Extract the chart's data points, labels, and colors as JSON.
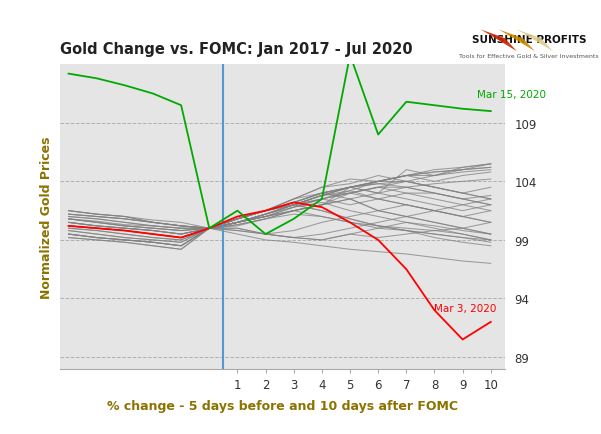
{
  "title": "Gold Change vs. FOMC: Jan 2017 - Jul 2020",
  "xlabel": "% change - 5 days before and 10 days after FOMC",
  "ylabel": "Normalized Gold Prices",
  "x_points": [
    -5,
    -4,
    -3,
    -2,
    -1,
    0,
    1,
    2,
    3,
    4,
    5,
    6,
    7,
    8,
    9,
    10
  ],
  "xlim": [
    -5.3,
    10.5
  ],
  "ylim": [
    88,
    114
  ],
  "yticks": [
    89,
    94,
    99,
    104,
    109
  ],
  "xticks": [
    1,
    2,
    3,
    4,
    5,
    6,
    7,
    8,
    9,
    10
  ],
  "vline_x": 0.5,
  "background_color": "#e5e5e5",
  "title_color": "#222222",
  "axis_label_color": "#8B7300",
  "mar15_color": "#00aa00",
  "mar3_color": "#ff0000",
  "gray_color": "#808080",
  "blue_vline_color": "#5599cc",
  "annotation_mar15": "Mar 15, 2020",
  "annotation_mar3": "Mar 3, 2020",
  "mar15_data": [
    113.2,
    112.8,
    112.2,
    111.5,
    110.5,
    100.0,
    101.5,
    99.5,
    100.8,
    102.5,
    114.8,
    108.0,
    110.8,
    110.5,
    110.2,
    110.0
  ],
  "mar3_data": [
    100.2,
    100.0,
    99.8,
    99.5,
    99.2,
    100.0,
    101.0,
    101.5,
    102.2,
    101.8,
    100.5,
    99.0,
    96.5,
    93.0,
    90.5,
    92.0
  ],
  "gray_lines": [
    [
      101.5,
      101.2,
      101.0,
      100.7,
      100.5,
      100.0,
      100.3,
      100.8,
      101.5,
      102.0,
      103.5,
      103.0,
      105.0,
      104.5,
      105.2,
      105.5
    ],
    [
      100.2,
      100.0,
      99.8,
      99.5,
      99.2,
      100.0,
      100.5,
      101.2,
      101.8,
      102.5,
      103.0,
      103.5,
      104.0,
      104.5,
      105.0,
      105.5
    ],
    [
      99.5,
      99.2,
      99.0,
      98.8,
      98.5,
      100.0,
      100.5,
      101.0,
      101.8,
      102.5,
      103.2,
      104.0,
      104.5,
      104.8,
      105.0,
      105.2
    ],
    [
      100.8,
      100.6,
      100.3,
      100.2,
      100.0,
      100.0,
      100.8,
      101.5,
      102.5,
      103.5,
      104.2,
      104.0,
      104.5,
      104.0,
      104.5,
      104.8
    ],
    [
      101.2,
      101.0,
      100.8,
      100.5,
      100.2,
      100.0,
      100.5,
      101.2,
      102.0,
      102.8,
      103.5,
      104.0,
      104.0,
      103.5,
      103.0,
      103.5
    ],
    [
      100.5,
      100.2,
      100.0,
      99.8,
      99.5,
      100.0,
      100.0,
      99.5,
      99.8,
      100.5,
      101.0,
      101.5,
      102.0,
      101.5,
      101.0,
      101.5
    ],
    [
      99.2,
      99.0,
      98.8,
      98.5,
      98.2,
      100.0,
      100.5,
      101.0,
      101.5,
      102.0,
      102.5,
      103.0,
      103.5,
      103.0,
      102.5,
      102.8
    ],
    [
      100.2,
      100.0,
      99.8,
      99.5,
      99.2,
      100.0,
      100.8,
      101.5,
      102.2,
      103.0,
      103.5,
      103.0,
      102.5,
      102.0,
      101.5,
      102.0
    ],
    [
      101.5,
      101.2,
      101.0,
      100.5,
      100.2,
      100.0,
      100.3,
      100.8,
      101.5,
      102.0,
      103.0,
      103.5,
      103.0,
      102.5,
      102.0,
      101.5
    ],
    [
      100.0,
      99.8,
      99.5,
      99.2,
      99.0,
      100.0,
      100.5,
      101.2,
      102.0,
      102.5,
      102.0,
      102.5,
      103.0,
      103.0,
      102.5,
      102.0
    ],
    [
      99.5,
      99.2,
      99.0,
      98.8,
      98.5,
      100.0,
      100.0,
      99.5,
      99.2,
      99.0,
      99.5,
      99.2,
      99.5,
      99.8,
      100.0,
      100.5
    ],
    [
      100.8,
      100.5,
      100.2,
      100.0,
      99.8,
      100.0,
      100.5,
      101.0,
      101.5,
      101.0,
      100.5,
      100.0,
      99.8,
      99.5,
      99.2,
      99.0
    ],
    [
      101.2,
      101.0,
      100.8,
      100.5,
      100.2,
      100.0,
      100.2,
      100.8,
      101.2,
      101.0,
      100.5,
      100.2,
      100.0,
      99.8,
      99.5,
      99.0
    ],
    [
      99.8,
      99.5,
      99.2,
      99.0,
      98.8,
      100.0,
      100.5,
      101.0,
      101.5,
      102.0,
      102.5,
      101.5,
      101.0,
      100.5,
      100.0,
      99.5
    ],
    [
      100.5,
      100.2,
      100.0,
      99.8,
      99.5,
      100.0,
      100.8,
      101.5,
      102.0,
      102.8,
      103.0,
      102.5,
      102.0,
      101.5,
      101.0,
      100.5
    ],
    [
      101.0,
      100.8,
      100.5,
      100.2,
      100.0,
      100.0,
      100.8,
      101.5,
      102.5,
      103.5,
      103.8,
      104.5,
      104.0,
      103.5,
      103.0,
      102.5
    ],
    [
      100.2,
      100.0,
      99.8,
      99.5,
      99.2,
      100.0,
      100.5,
      101.2,
      102.0,
      102.8,
      103.5,
      104.0,
      104.5,
      104.5,
      104.8,
      105.0
    ],
    [
      99.5,
      99.2,
      99.0,
      98.8,
      98.5,
      100.0,
      100.5,
      101.2,
      102.0,
      102.5,
      103.0,
      103.5,
      103.5,
      103.8,
      104.0,
      104.2
    ],
    [
      100.8,
      100.5,
      100.2,
      100.0,
      99.8,
      100.0,
      100.8,
      101.5,
      102.2,
      103.0,
      103.5,
      103.8,
      103.5,
      103.0,
      102.5,
      102.0
    ],
    [
      101.5,
      101.2,
      101.0,
      100.5,
      100.2,
      100.0,
      100.8,
      101.5,
      102.2,
      103.0,
      103.5,
      103.8,
      104.0,
      103.5,
      103.0,
      102.5
    ],
    [
      100.0,
      99.8,
      99.5,
      99.2,
      99.0,
      100.0,
      100.5,
      101.2,
      102.0,
      102.8,
      103.5,
      104.0,
      104.5,
      104.8,
      105.0,
      105.2
    ],
    [
      99.2,
      99.0,
      98.8,
      98.5,
      98.2,
      100.0,
      99.8,
      99.5,
      99.2,
      99.5,
      100.0,
      100.5,
      101.0,
      101.5,
      102.0,
      102.5
    ],
    [
      100.5,
      100.2,
      100.0,
      99.8,
      99.5,
      100.0,
      100.8,
      101.5,
      102.5,
      103.0,
      102.5,
      101.5,
      101.0,
      100.5,
      100.0,
      99.5
    ],
    [
      101.2,
      101.0,
      100.8,
      100.5,
      100.2,
      100.0,
      100.8,
      101.5,
      102.0,
      102.8,
      103.2,
      102.5,
      102.0,
      101.5,
      101.0,
      100.5
    ],
    [
      99.8,
      99.5,
      99.2,
      99.0,
      98.8,
      100.0,
      100.5,
      101.0,
      101.8,
      102.2,
      101.5,
      101.0,
      100.5,
      100.0,
      99.5,
      99.0
    ],
    [
      100.5,
      100.2,
      100.0,
      99.8,
      99.5,
      100.0,
      100.8,
      101.5,
      102.0,
      101.5,
      100.8,
      100.2,
      99.8,
      99.5,
      99.2,
      98.8
    ],
    [
      101.0,
      100.8,
      100.5,
      100.2,
      100.0,
      100.0,
      99.5,
      99.0,
      98.8,
      98.5,
      98.2,
      98.0,
      97.8,
      97.5,
      97.2,
      97.0
    ],
    [
      100.2,
      100.0,
      99.8,
      99.5,
      99.2,
      100.0,
      100.8,
      101.5,
      102.0,
      101.5,
      100.8,
      100.2,
      99.8,
      99.2,
      98.8,
      98.5
    ],
    [
      99.5,
      99.2,
      99.0,
      98.8,
      98.5,
      100.0,
      99.8,
      99.5,
      99.2,
      99.0,
      99.5,
      100.0,
      100.5,
      100.2,
      99.8,
      99.5
    ],
    [
      100.8,
      100.5,
      100.2,
      100.0,
      99.8,
      100.0,
      100.8,
      101.5,
      102.2,
      103.0,
      103.5,
      104.0,
      104.5,
      105.0,
      105.2,
      105.5
    ]
  ]
}
